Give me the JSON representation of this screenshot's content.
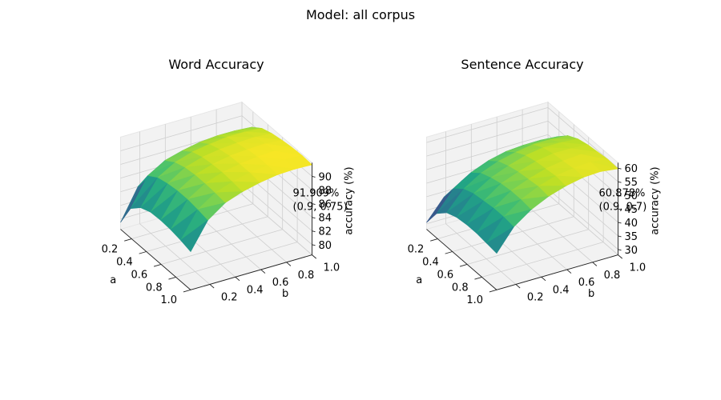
{
  "suptitle": "Model: all corpus",
  "chart_data": [
    {
      "type": "surface",
      "title": "Word Accuracy",
      "xlabel": "a",
      "ylabel": "b",
      "zlabel": "accuracy (%)",
      "x_ticks": [
        "0.2",
        "0.4",
        "0.6",
        "0.8",
        "1.0"
      ],
      "y_ticks": [
        "0.2",
        "0.4",
        "0.6",
        "0.8",
        "1.0"
      ],
      "z_ticks": [
        "80",
        "82",
        "84",
        "86",
        "88",
        "90"
      ],
      "xlim": [
        0.05,
        1.0
      ],
      "ylim": [
        0.05,
        1.0
      ],
      "zlim": [
        78.5,
        92
      ],
      "colormap": "viridis",
      "grid": true,
      "max_label": {
        "value": "91.909%",
        "point": "(0.9, 0.75)"
      },
      "surface_z": [
        [
          79.5,
          84.0,
          85.8,
          86.6,
          87.0,
          87.3,
          87.4,
          87.3
        ],
        [
          82.8,
          86.9,
          88.4,
          89.1,
          89.6,
          89.8,
          89.8,
          89.6
        ],
        [
          84.2,
          87.9,
          89.4,
          90.2,
          90.6,
          90.9,
          90.9,
          90.7
        ],
        [
          84.8,
          88.3,
          89.9,
          90.7,
          91.1,
          91.3,
          91.4,
          91.2
        ],
        [
          84.9,
          88.5,
          90.1,
          90.9,
          91.4,
          91.6,
          91.7,
          91.5
        ],
        [
          84.8,
          88.5,
          90.1,
          91.0,
          91.5,
          91.8,
          91.9,
          91.7
        ],
        [
          84.5,
          88.3,
          90.0,
          90.9,
          91.5,
          91.8,
          91.9,
          91.8
        ],
        [
          84.1,
          88.0,
          89.8,
          90.7,
          91.3,
          91.7,
          91.8,
          91.7
        ]
      ]
    },
    {
      "type": "surface",
      "title": "Sentence Accuracy",
      "xlabel": "a",
      "ylabel": "b",
      "zlabel": "accuracy (%)",
      "x_ticks": [
        "0.2",
        "0.4",
        "0.6",
        "0.8",
        "1.0"
      ],
      "y_ticks": [
        "0.2",
        "0.4",
        "0.6",
        "0.8",
        "1.0"
      ],
      "z_ticks": [
        "30",
        "35",
        "40",
        "45",
        "50",
        "55",
        "60"
      ],
      "xlim": [
        0.05,
        1.0
      ],
      "ylim": [
        0.05,
        1.0
      ],
      "zlim": [
        28,
        62
      ],
      "colormap": "viridis",
      "grid": true,
      "max_label": {
        "value": "60.878%",
        "point": "(0.9, 0.7)"
      },
      "surface_z": [
        [
          30.5,
          38.0,
          42.0,
          44.5,
          45.5,
          46.0,
          46.5,
          46.0
        ],
        [
          37.0,
          44.5,
          48.5,
          51.0,
          52.5,
          53.0,
          53.0,
          52.5
        ],
        [
          40.5,
          47.5,
          51.5,
          54.0,
          55.5,
          56.5,
          56.5,
          56.0
        ],
        [
          42.0,
          49.0,
          53.0,
          55.5,
          57.5,
          58.5,
          58.5,
          58.0
        ],
        [
          42.5,
          49.5,
          54.0,
          56.5,
          58.5,
          59.5,
          59.5,
          59.0
        ],
        [
          42.5,
          50.0,
          54.5,
          57.0,
          59.0,
          60.0,
          60.5,
          59.5
        ],
        [
          42.0,
          50.0,
          54.5,
          57.5,
          59.5,
          60.5,
          60.9,
          60.0
        ],
        [
          41.5,
          49.5,
          54.0,
          57.0,
          59.0,
          60.3,
          60.6,
          59.8
        ]
      ]
    }
  ]
}
